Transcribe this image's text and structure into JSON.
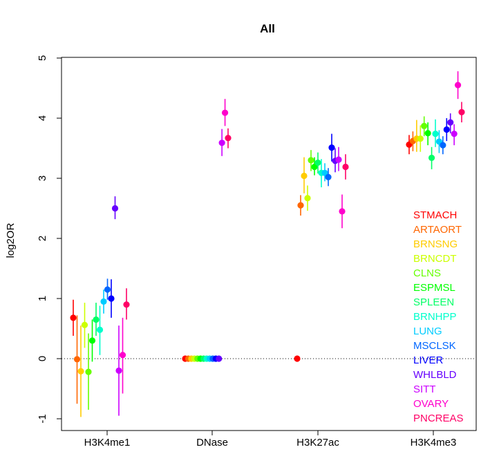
{
  "chart_data": {
    "type": "scatter",
    "title": "All",
    "xlabel": "",
    "ylabel": "log2OR",
    "ylim": [
      -1.2,
      5.1
    ],
    "yticks": [
      -1,
      0,
      1,
      2,
      3,
      4,
      5
    ],
    "reference_line": {
      "y": 0,
      "style": "dotted"
    },
    "categories": [
      "H3K4me1",
      "DNase",
      "H3K27ac",
      "H3K4me3"
    ],
    "legend_position": "right",
    "series": [
      {
        "name": "STMACH",
        "color": "#FF0000",
        "points": [
          {
            "x": "H3K4me1",
            "y": 0.68,
            "lo": 0.38,
            "hi": 0.98
          },
          {
            "x": "DNase",
            "y": 0.0
          },
          {
            "x": "H3K27ac",
            "y": 0.0
          },
          {
            "x": "H3K4me3",
            "y": 3.56,
            "lo": 3.4,
            "hi": 3.72
          }
        ]
      },
      {
        "name": "ARTAORT",
        "color": "#FF6600",
        "points": [
          {
            "x": "H3K4me1",
            "y": -0.01,
            "lo": -0.75,
            "hi": 0.72
          },
          {
            "x": "DNase",
            "y": 0.0
          },
          {
            "x": "H3K27ac",
            "y": 2.55,
            "lo": 2.38,
            "hi": 2.72
          },
          {
            "x": "H3K4me3",
            "y": 3.62,
            "lo": 3.45,
            "hi": 3.78
          }
        ]
      },
      {
        "name": "BRNSNG",
        "color": "#FFCC00",
        "points": [
          {
            "x": "H3K4me1",
            "y": -0.21,
            "lo": -0.97,
            "hi": 0.55
          },
          {
            "x": "DNase",
            "y": 0.0
          },
          {
            "x": "H3K27ac",
            "y": 3.04,
            "lo": 2.75,
            "hi": 3.35
          },
          {
            "x": "H3K4me3",
            "y": 3.66,
            "lo": 3.44,
            "hi": 3.97
          }
        ]
      },
      {
        "name": "BRNCDT",
        "color": "#CCFF00",
        "points": [
          {
            "x": "H3K4me1",
            "y": 0.56,
            "lo": 0.18,
            "hi": 0.93
          },
          {
            "x": "DNase",
            "y": 0.0
          },
          {
            "x": "H3K27ac",
            "y": 2.67,
            "lo": 2.46,
            "hi": 2.88
          },
          {
            "x": "H3K4me3",
            "y": 3.66,
            "lo": 3.44,
            "hi": 3.88
          }
        ]
      },
      {
        "name": "CLNS",
        "color": "#66FF00",
        "points": [
          {
            "x": "H3K4me1",
            "y": -0.22,
            "lo": -0.85,
            "hi": 0.42
          },
          {
            "x": "DNase",
            "y": 0.0
          },
          {
            "x": "H3K27ac",
            "y": 3.3,
            "lo": 3.12,
            "hi": 3.47
          },
          {
            "x": "H3K4me3",
            "y": 3.87,
            "lo": 3.7,
            "hi": 4.03
          }
        ]
      },
      {
        "name": "ESPMSL",
        "color": "#00FF00",
        "points": [
          {
            "x": "H3K4me1",
            "y": 0.3,
            "lo": -0.05,
            "hi": 0.65
          },
          {
            "x": "DNase",
            "y": 0.0
          },
          {
            "x": "H3K27ac",
            "y": 3.19,
            "lo": 3.05,
            "hi": 3.35
          },
          {
            "x": "H3K4me3",
            "y": 3.75,
            "lo": 3.55,
            "hi": 3.93
          }
        ]
      },
      {
        "name": "SPLEEN",
        "color": "#00FF66",
        "points": [
          {
            "x": "H3K4me1",
            "y": 0.65,
            "lo": 0.38,
            "hi": 0.93
          },
          {
            "x": "DNase",
            "y": 0.0
          },
          {
            "x": "H3K27ac",
            "y": 3.26,
            "lo": 3.08,
            "hi": 3.43
          },
          {
            "x": "H3K4me3",
            "y": 3.34,
            "lo": 3.15,
            "hi": 3.52
          }
        ]
      },
      {
        "name": "BRNHPP",
        "color": "#00FFCC",
        "points": [
          {
            "x": "H3K4me1",
            "y": 0.48,
            "lo": 0.06,
            "hi": 0.88
          },
          {
            "x": "DNase",
            "y": 0.0
          },
          {
            "x": "H3K27ac",
            "y": 3.09,
            "lo": 2.85,
            "hi": 3.32
          },
          {
            "x": "H3K4me3",
            "y": 3.74,
            "lo": 3.52,
            "hi": 3.98
          }
        ]
      },
      {
        "name": "LUNG",
        "color": "#00CCFF",
        "points": [
          {
            "x": "H3K4me1",
            "y": 0.95,
            "lo": 0.75,
            "hi": 1.15
          },
          {
            "x": "DNase",
            "y": 0.0
          },
          {
            "x": "H3K27ac",
            "y": 3.09,
            "lo": 2.95,
            "hi": 3.25
          },
          {
            "x": "H3K4me3",
            "y": 3.61,
            "lo": 3.42,
            "hi": 3.8
          }
        ]
      },
      {
        "name": "MSCLSK",
        "color": "#0066FF",
        "points": [
          {
            "x": "H3K4me1",
            "y": 1.15,
            "lo": 0.98,
            "hi": 1.33
          },
          {
            "x": "DNase",
            "y": 0.0
          },
          {
            "x": "H3K27ac",
            "y": 3.02,
            "lo": 2.87,
            "hi": 3.17
          },
          {
            "x": "H3K4me3",
            "y": 3.55,
            "lo": 3.4,
            "hi": 3.7
          }
        ]
      },
      {
        "name": "LIVER",
        "color": "#0000FF",
        "points": [
          {
            "x": "H3K4me1",
            "y": 1.0,
            "lo": 0.68,
            "hi": 1.32
          },
          {
            "x": "DNase",
            "y": 0.0
          },
          {
            "x": "H3K27ac",
            "y": 3.51,
            "lo": 3.28,
            "hi": 3.74
          },
          {
            "x": "H3K4me3",
            "y": 3.81,
            "lo": 3.62,
            "hi": 4.0
          }
        ]
      },
      {
        "name": "WHLBLD",
        "color": "#6600FF",
        "points": [
          {
            "x": "H3K4me1",
            "y": 2.5,
            "lo": 2.32,
            "hi": 2.7
          },
          {
            "x": "DNase",
            "y": 0.0
          },
          {
            "x": "H3K27ac",
            "y": 3.29,
            "lo": 3.1,
            "hi": 3.5
          },
          {
            "x": "H3K4me3",
            "y": 3.93,
            "lo": 3.75,
            "hi": 4.08
          }
        ]
      },
      {
        "name": "SITT",
        "color": "#CC00FF",
        "points": [
          {
            "x": "H3K4me1",
            "y": -0.2,
            "lo": -0.95,
            "hi": 0.55
          },
          {
            "x": "DNase",
            "y": 3.59,
            "lo": 3.37,
            "hi": 3.82
          },
          {
            "x": "H3K27ac",
            "y": 3.31,
            "lo": 3.12,
            "hi": 3.52
          },
          {
            "x": "H3K4me3",
            "y": 3.74,
            "lo": 3.55,
            "hi": 3.9
          }
        ]
      },
      {
        "name": "OVARY",
        "color": "#FF00CC",
        "points": [
          {
            "x": "H3K4me1",
            "y": 0.06,
            "lo": -0.58,
            "hi": 0.68
          },
          {
            "x": "DNase",
            "y": 4.09,
            "lo": 3.87,
            "hi": 4.32
          },
          {
            "x": "H3K27ac",
            "y": 2.45,
            "lo": 2.17,
            "hi": 2.73
          },
          {
            "x": "H3K4me3",
            "y": 4.55,
            "lo": 4.32,
            "hi": 4.78
          }
        ]
      },
      {
        "name": "PNCREAS",
        "color": "#FF0066",
        "points": [
          {
            "x": "H3K4me1",
            "y": 0.9,
            "lo": 0.65,
            "hi": 1.17
          },
          {
            "x": "DNase",
            "y": 3.67,
            "lo": 3.5,
            "hi": 3.83
          },
          {
            "x": "H3K27ac",
            "y": 3.19,
            "lo": 2.98,
            "hi": 3.4
          },
          {
            "x": "H3K4me3",
            "y": 4.1,
            "lo": 3.93,
            "hi": 4.27
          }
        ]
      }
    ]
  }
}
